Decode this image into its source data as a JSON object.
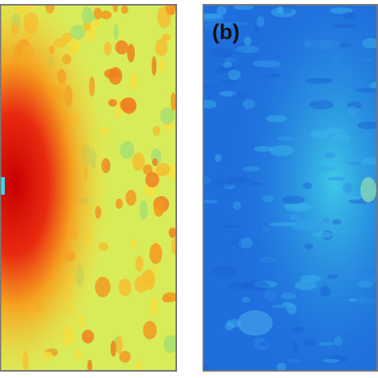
{
  "panels": [
    {
      "label": "(b)"
    }
  ]
}
